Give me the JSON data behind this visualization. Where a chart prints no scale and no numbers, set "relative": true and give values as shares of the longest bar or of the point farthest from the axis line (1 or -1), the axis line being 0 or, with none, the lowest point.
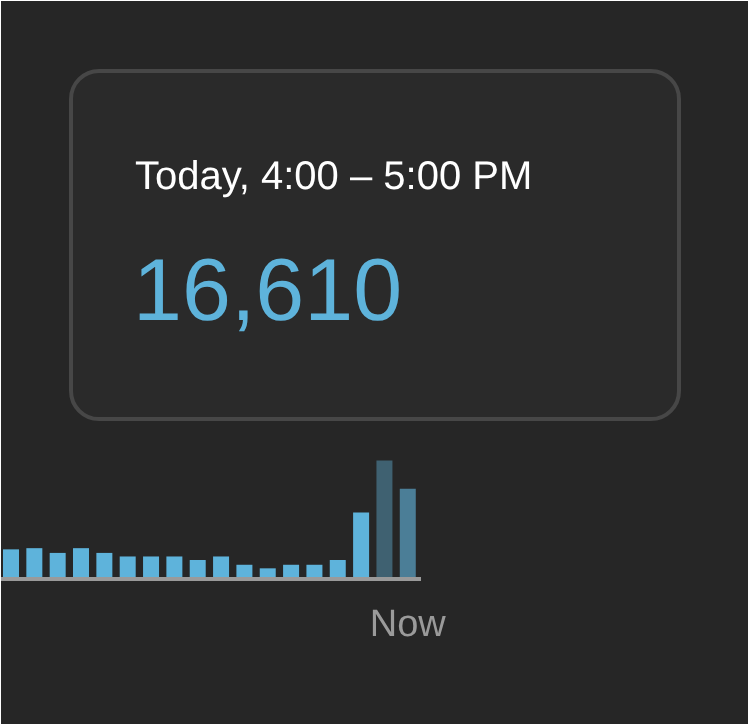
{
  "chart_data": {
    "type": "bar",
    "relative": true,
    "title": "Today, 4:00 – 5:00 PM",
    "annotations": [
      "16,610"
    ],
    "categories": [
      null,
      null,
      null,
      null,
      null,
      null,
      null,
      null,
      null,
      null,
      null,
      null,
      null,
      null,
      null,
      null,
      null,
      "Now"
    ],
    "values": [
      0.25,
      0.26,
      0.22,
      0.26,
      0.22,
      0.19,
      0.19,
      0.19,
      0.16,
      0.19,
      0.12,
      0.09,
      0.12,
      0.12,
      0.16,
      0.56,
      1,
      0.76
    ],
    "colors": [
      "#5eb3db",
      "#5eb3db",
      "#5eb3db",
      "#5eb3db",
      "#5eb3db",
      "#5eb3db",
      "#5eb3db",
      "#5eb3db",
      "#5eb3db",
      "#5eb3db",
      "#5eb3db",
      "#5eb3db",
      "#5eb3db",
      "#5eb3db",
      "#5eb3db",
      "#5eb3db",
      "#3f6171",
      "#4b7e97"
    ]
  }
}
